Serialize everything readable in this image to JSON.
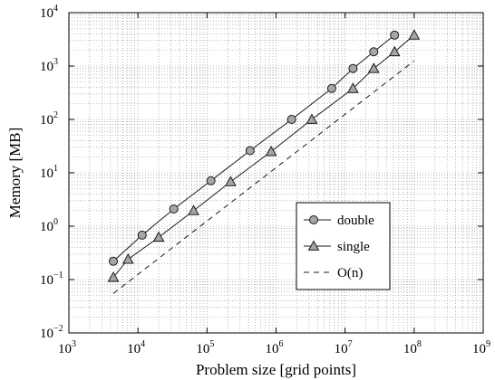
{
  "chart_data": {
    "type": "line",
    "xlabel": "Problem size [grid points]",
    "ylabel": "Memory [MB]",
    "x_scale": "log",
    "y_scale": "log",
    "xlim": [
      1000,
      1000000000
    ],
    "ylim": [
      0.01,
      10000
    ],
    "x_ticks": [
      {
        "base": "10",
        "exp": "3"
      },
      {
        "base": "10",
        "exp": "4"
      },
      {
        "base": "10",
        "exp": "5"
      },
      {
        "base": "10",
        "exp": "6"
      },
      {
        "base": "10",
        "exp": "7"
      },
      {
        "base": "10",
        "exp": "8"
      },
      {
        "base": "10",
        "exp": "9"
      }
    ],
    "y_ticks": [
      {
        "base": "10",
        "exp": "−2"
      },
      {
        "base": "10",
        "exp": "−1"
      },
      {
        "base": "10",
        "exp": "0"
      },
      {
        "base": "10",
        "exp": "1"
      },
      {
        "base": "10",
        "exp": "2"
      },
      {
        "base": "10",
        "exp": "3"
      },
      {
        "base": "10",
        "exp": "4"
      }
    ],
    "grid": "major and minor, dotted",
    "legend_position": "lower-right",
    "series": [
      {
        "name": "double",
        "marker": "circle",
        "line_style": "solid",
        "x": [
          4400,
          11500,
          33000,
          114000,
          420000,
          1680000,
          6400000,
          13000000,
          26000000,
          52000000
        ],
        "y": [
          0.22,
          0.68,
          2.1,
          7.1,
          26,
          100,
          380,
          900,
          1850,
          3800
        ]
      },
      {
        "name": "single",
        "marker": "triangle",
        "line_style": "solid",
        "x": [
          4400,
          7200,
          20000,
          64000,
          220000,
          850000,
          3300000,
          13000000,
          26000000,
          52000000,
          100000000
        ],
        "y": [
          0.11,
          0.24,
          0.62,
          1.95,
          6.8,
          25,
          100,
          380,
          900,
          1850,
          3800
        ]
      },
      {
        "name": "O(n)",
        "marker": "none",
        "line_style": "dashed",
        "x": [
          4400,
          100000000
        ],
        "y": [
          0.055,
          1250
        ]
      }
    ]
  },
  "colors": {
    "line": "#1a1a1a",
    "marker_fill": "#a6a6a6",
    "grid": "#8c8c8c"
  }
}
